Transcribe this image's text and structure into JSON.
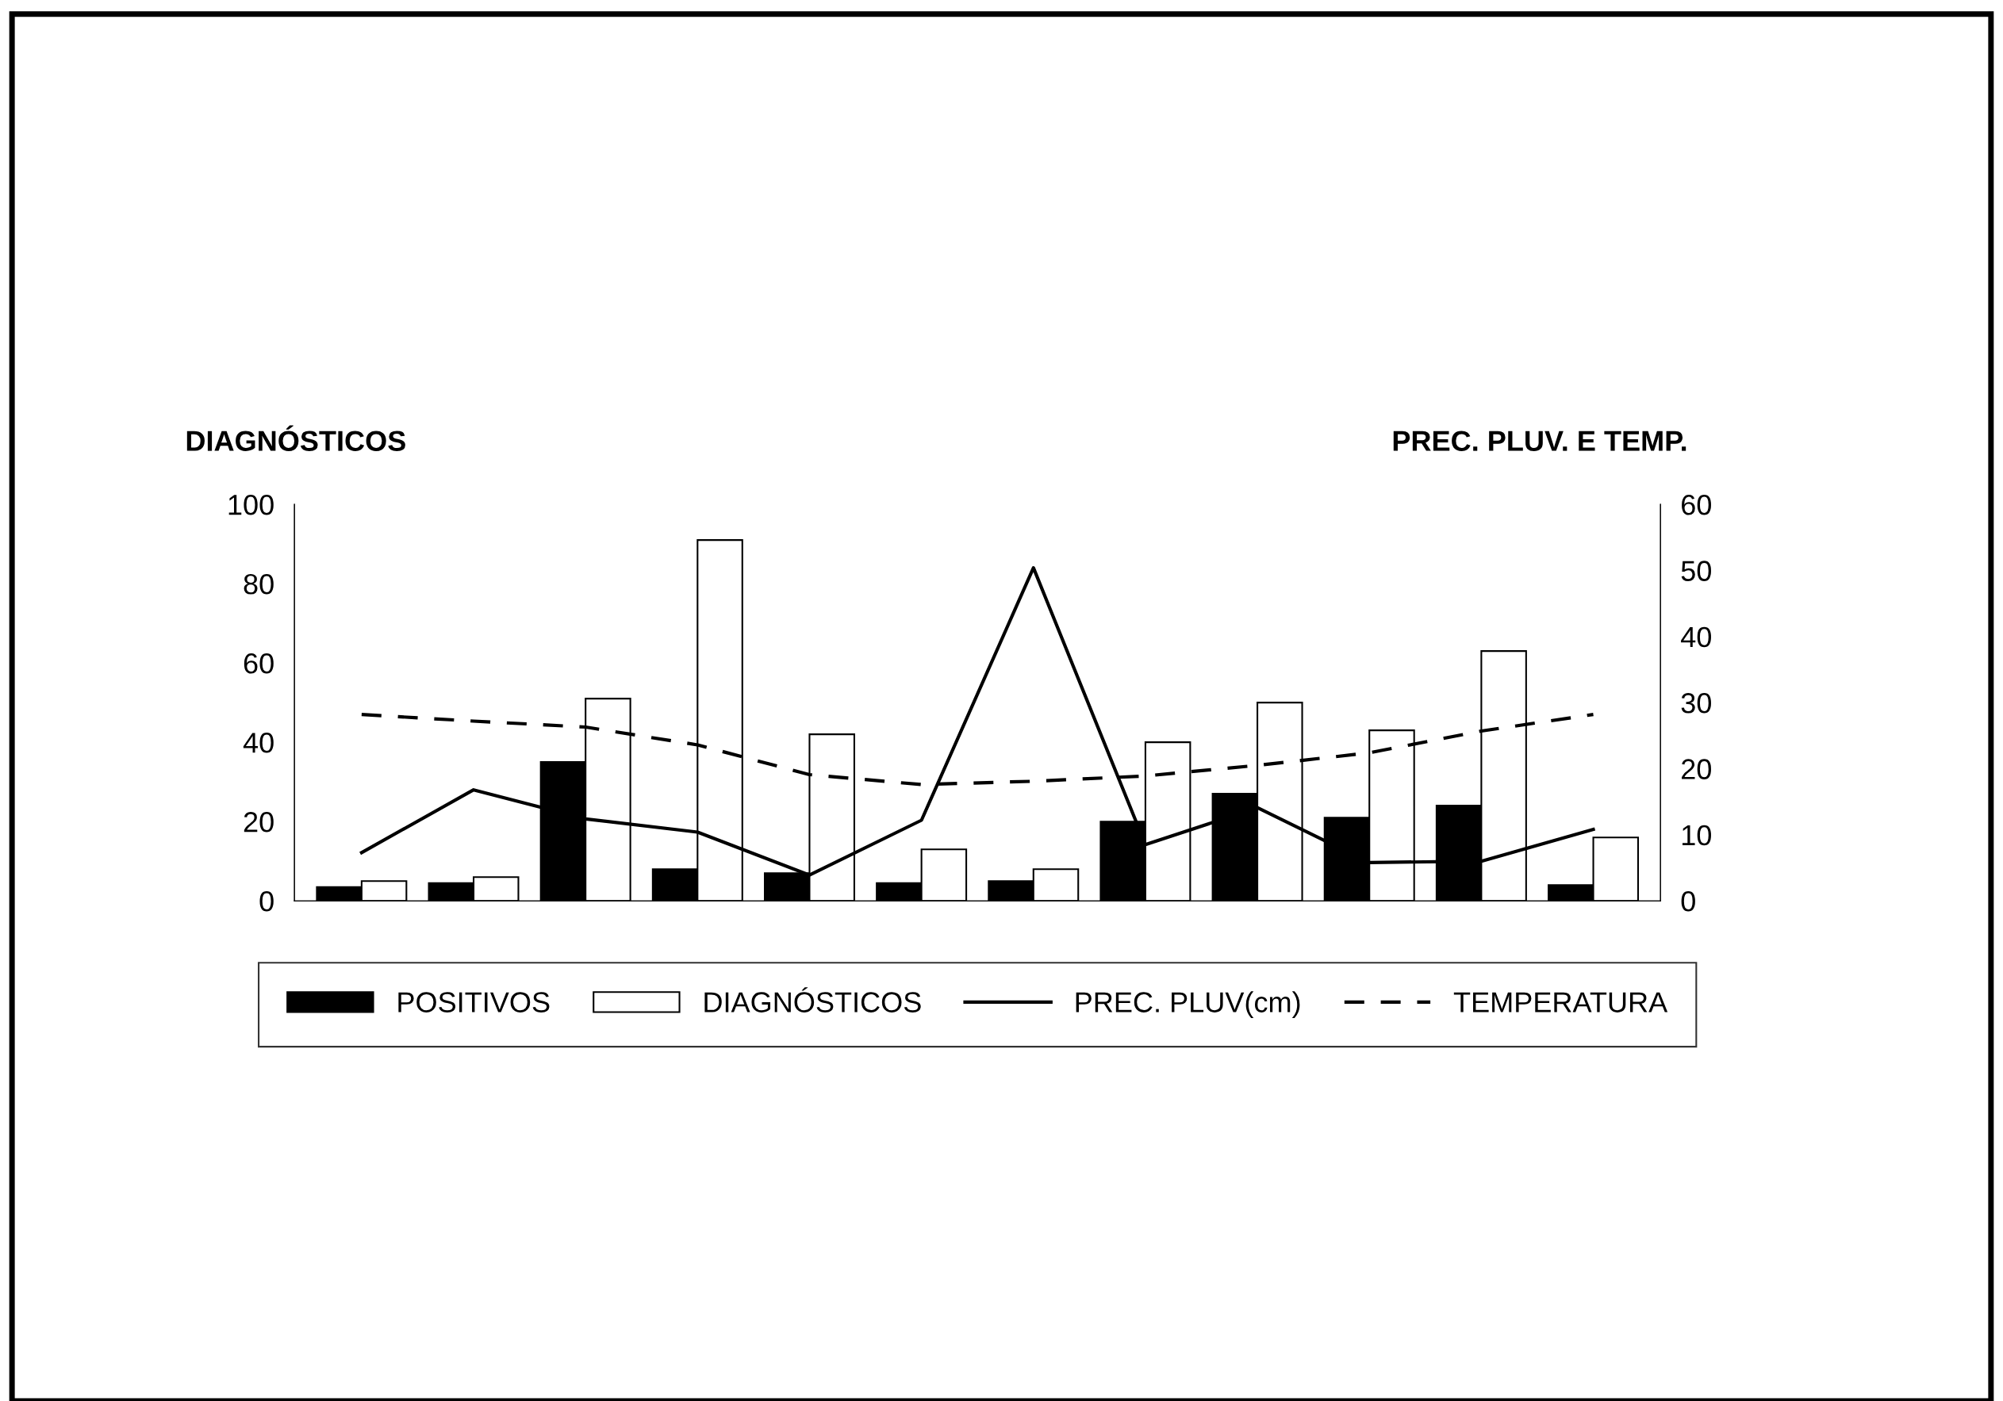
{
  "chart_data": {
    "type": "bar",
    "ylabel": "DIAGNÓSTICOS",
    "y2label": "PREC. PLUV. E TEMP.",
    "categories": [
      null,
      null,
      null,
      null,
      null,
      null,
      null,
      null,
      null,
      null,
      null,
      null
    ],
    "series": [
      {
        "name": "POSITIVOS",
        "color": "#000000",
        "values": [
          3.5,
          4.5,
          35,
          8,
          7,
          4.5,
          5,
          20,
          27,
          21,
          24,
          4
        ]
      },
      {
        "name": "DIAGNÓSTICOS",
        "color": "#ffffff",
        "values": [
          5,
          6,
          51,
          91,
          42,
          13,
          8,
          40,
          50,
          43,
          63,
          16
        ]
      },
      {
        "name": "PREC. PLUV(cm)",
        "type": "line",
        "axis": "y2",
        "color": "#000000",
        "line_style": "solid",
        "values": [
          7.3,
          16.8,
          12.4,
          10.4,
          3.9,
          12.2,
          50.4,
          8.5,
          14.1,
          5.8,
          6,
          10.8
        ]
      },
      {
        "name": "TEMPERATURA",
        "type": "line",
        "axis": "y2",
        "color": "#000000",
        "line_style": "dashed",
        "values": [
          28.2,
          27.2,
          26.3,
          23.6,
          19.1,
          17.6,
          18.1,
          18.9,
          20.5,
          22.4,
          25.7,
          28.2
        ]
      }
    ],
    "ylim": [
      0,
      100
    ],
    "yticks": [
      0,
      20,
      40,
      60,
      80,
      100
    ],
    "y2lim": [
      0,
      60
    ],
    "y2ticks": [
      0,
      10,
      20,
      30,
      40,
      50,
      60
    ],
    "legend": "bottom",
    "grid": false
  }
}
